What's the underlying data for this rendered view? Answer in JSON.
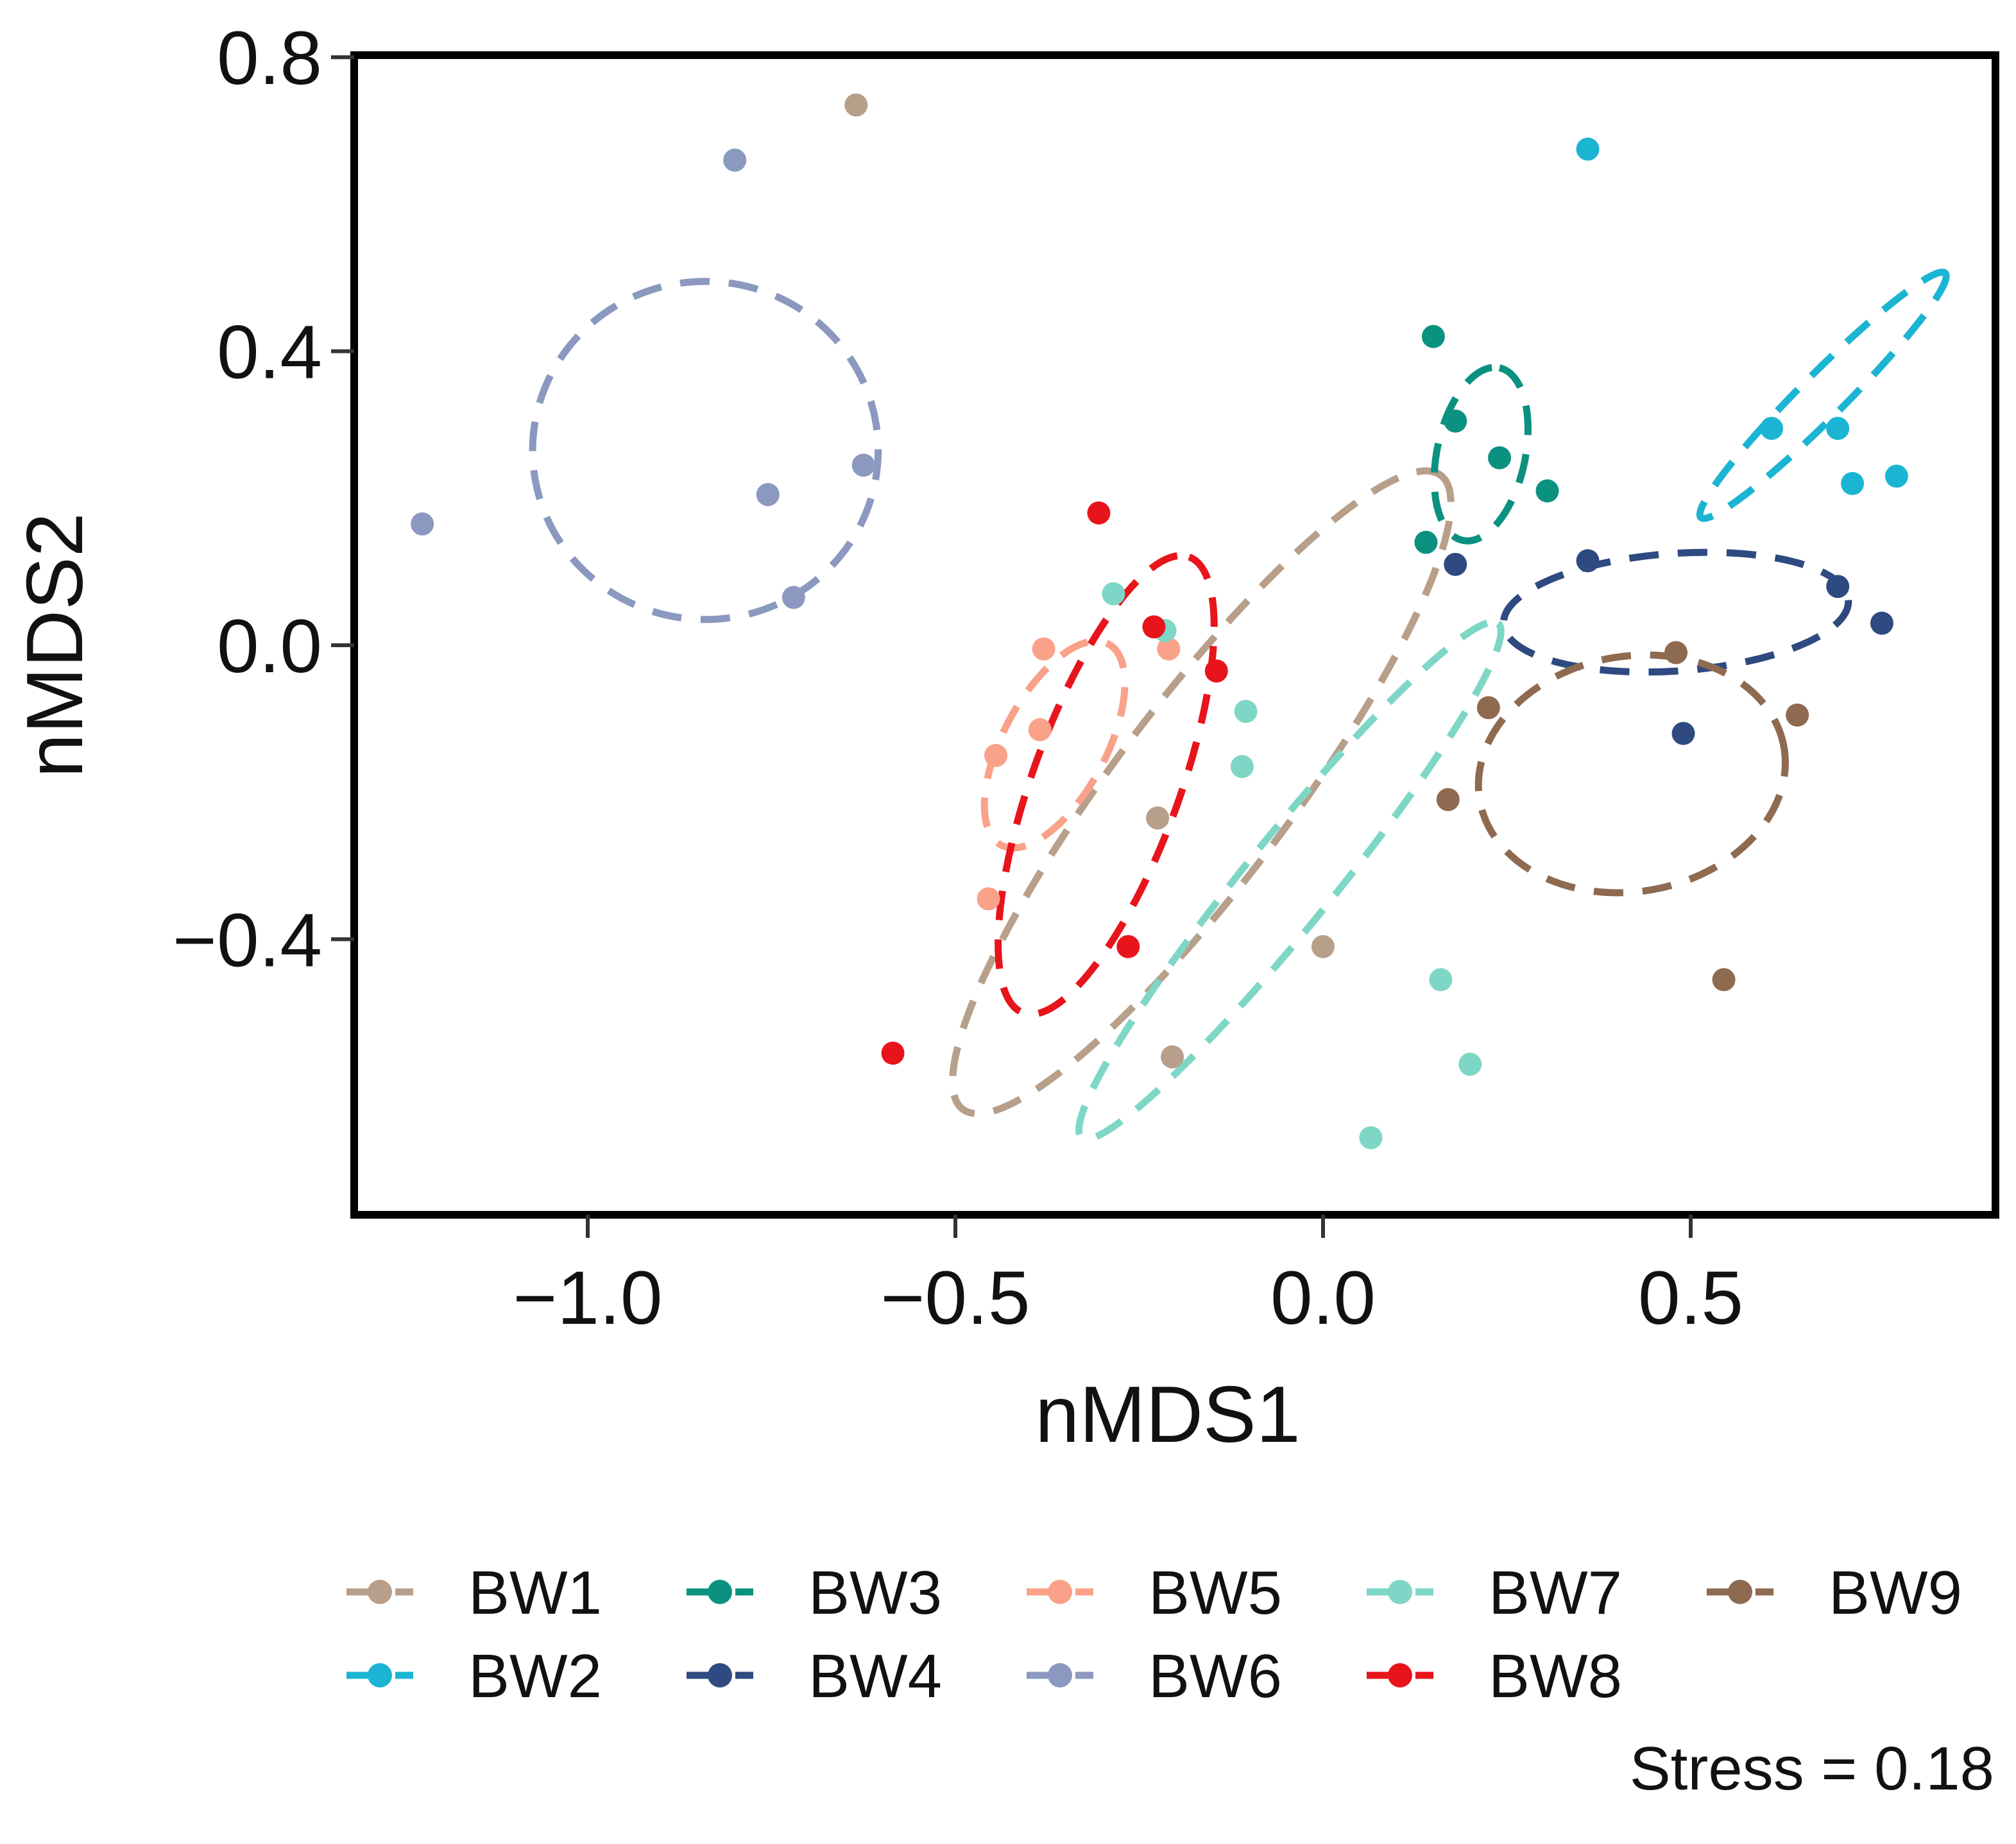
{
  "chart_data": {
    "type": "scatter",
    "title": "",
    "xlabel": "nMDS1",
    "ylabel": "nMDS2",
    "xlim": [
      -1.33,
      0.9
    ],
    "ylim": [
      -0.77,
      0.81
    ],
    "xticks": [
      -1.0,
      -0.5,
      0.0,
      0.5
    ],
    "xtick_labels": [
      "−1.0",
      "−0.5",
      "0.0",
      "0.5"
    ],
    "yticks": [
      -0.4,
      0.0,
      0.4,
      0.8
    ],
    "ytick_labels": [
      "−0.4",
      "0.0",
      "0.4",
      "0.8"
    ],
    "grid": false,
    "legend_position": "bottom",
    "annotation": "Stress =  0.18",
    "series": [
      {
        "name": "BW1",
        "color": "#B79F8A",
        "points": [
          [
            -0.635,
            0.735
          ],
          [
            -0.225,
            -0.235
          ],
          [
            0.0,
            -0.41
          ],
          [
            -0.205,
            -0.56
          ]
        ],
        "ellipse": {
          "cx": -0.165,
          "cy": -0.2,
          "rx": 0.54,
          "ry": 0.12,
          "angle_deg": -53
        }
      },
      {
        "name": "BW2",
        "color": "#1BB5D3",
        "points": [
          [
            0.36,
            0.675
          ],
          [
            0.61,
            0.295
          ],
          [
            0.7,
            0.295
          ],
          [
            0.72,
            0.22
          ],
          [
            0.78,
            0.23
          ]
        ],
        "ellipse": {
          "cx": 0.68,
          "cy": 0.34,
          "rx": 0.235,
          "ry": 0.03,
          "angle_deg": -45
        }
      },
      {
        "name": "BW3",
        "color": "#0B9180",
        "points": [
          [
            0.15,
            0.42
          ],
          [
            0.18,
            0.305
          ],
          [
            0.24,
            0.255
          ],
          [
            0.305,
            0.21
          ],
          [
            0.14,
            0.14
          ]
        ],
        "ellipse": {
          "cx": 0.215,
          "cy": 0.26,
          "rx": 0.12,
          "ry": 0.06,
          "angle_deg": -78
        }
      },
      {
        "name": "BW4",
        "color": "#2E4A80",
        "points": [
          [
            0.18,
            0.11
          ],
          [
            0.36,
            0.115
          ],
          [
            0.49,
            -0.12
          ],
          [
            0.7,
            0.08
          ],
          [
            0.76,
            0.03
          ]
        ],
        "ellipse": {
          "cx": 0.48,
          "cy": 0.045,
          "rx": 0.235,
          "ry": 0.08,
          "angle_deg": -4
        }
      },
      {
        "name": "BW5",
        "color": "#F9A189",
        "points": [
          [
            -0.38,
            -0.005
          ],
          [
            -0.21,
            -0.005
          ],
          [
            -0.385,
            -0.115
          ],
          [
            -0.445,
            -0.15
          ],
          [
            -0.455,
            -0.345
          ]
        ],
        "ellipse": {
          "cx": -0.365,
          "cy": -0.135,
          "rx": 0.155,
          "ry": 0.07,
          "angle_deg": -62
        }
      },
      {
        "name": "BW6",
        "color": "#8B98BF",
        "points": [
          [
            -0.8,
            0.66
          ],
          [
            -0.755,
            0.205
          ],
          [
            -0.625,
            0.245
          ],
          [
            -0.72,
            0.065
          ],
          [
            -1.225,
            0.165
          ]
        ],
        "ellipse": {
          "cx": -0.84,
          "cy": 0.265,
          "rx": 0.235,
          "ry": 0.23,
          "angle_deg": 0
        }
      },
      {
        "name": "BW7",
        "color": "#7ED7C6",
        "points": [
          [
            -0.285,
            0.07
          ],
          [
            -0.215,
            0.02
          ],
          [
            -0.105,
            -0.09
          ],
          [
            -0.11,
            -0.165
          ],
          [
            0.2,
            -0.57
          ],
          [
            0.065,
            -0.67
          ],
          [
            0.16,
            -0.455
          ]
        ],
        "ellipse": {
          "cx": -0.045,
          "cy": -0.32,
          "rx": 0.45,
          "ry": 0.06,
          "angle_deg": -51
        }
      },
      {
        "name": "BW8",
        "color": "#E8141C",
        "points": [
          [
            -0.305,
            0.18
          ],
          [
            -0.23,
            0.025
          ],
          [
            -0.145,
            -0.035
          ],
          [
            -0.265,
            -0.41
          ],
          [
            -0.585,
            -0.555
          ]
        ],
        "ellipse": {
          "cx": -0.295,
          "cy": -0.19,
          "rx": 0.33,
          "ry": 0.1,
          "angle_deg": -70
        }
      },
      {
        "name": "BW9",
        "color": "#8E6A50",
        "points": [
          [
            0.225,
            -0.085
          ],
          [
            0.17,
            -0.21
          ],
          [
            0.48,
            -0.01
          ],
          [
            0.645,
            -0.095
          ],
          [
            0.545,
            -0.455
          ]
        ],
        "ellipse": {
          "cx": 0.42,
          "cy": -0.175,
          "rx": 0.21,
          "ry": 0.16,
          "angle_deg": -10
        }
      }
    ]
  }
}
